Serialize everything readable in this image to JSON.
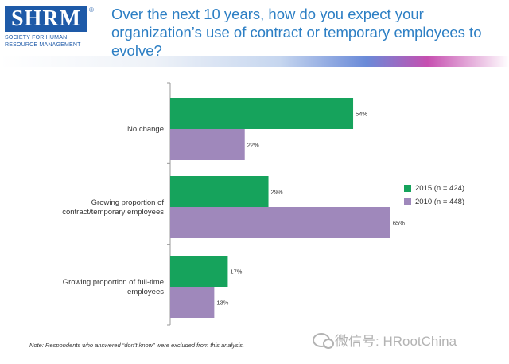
{
  "logo": {
    "wordmark": "SHRM",
    "reg": "®",
    "line1": "SOCIETY FOR HUMAN",
    "line2": "RESOURCE MANAGEMENT"
  },
  "title": "Over the next 10 years, how do you expect your organization’s use of contract or temporary employees to evolve?",
  "colors": {
    "green": "#16a35c",
    "purple": "#9f88bb",
    "title": "#2d7fc4"
  },
  "chart_data": {
    "type": "bar",
    "orientation": "horizontal",
    "categories": [
      [
        "No change"
      ],
      [
        "Growing proportion of",
        "contract/temporary employees"
      ],
      [
        "Growing proportion of full-time",
        "employees"
      ]
    ],
    "series": [
      {
        "name": "2015 (n = 424)",
        "color": "#16a35c",
        "values": [
          54,
          29,
          17
        ],
        "labels": [
          "54%",
          "29%",
          "17%"
        ]
      },
      {
        "name": "2010 (n = 448)",
        "color": "#9f88bb",
        "values": [
          22,
          65,
          13
        ],
        "labels": [
          "22%",
          "65%",
          "13%"
        ]
      }
    ],
    "xlim": [
      0,
      100
    ],
    "grid": false,
    "legend_position": "right"
  },
  "note": "Note: Respondents who answered “don’t know” were excluded from this analysis.",
  "watermark": {
    "icon": "wechat-icon",
    "text": "微信号: HRootChina"
  }
}
